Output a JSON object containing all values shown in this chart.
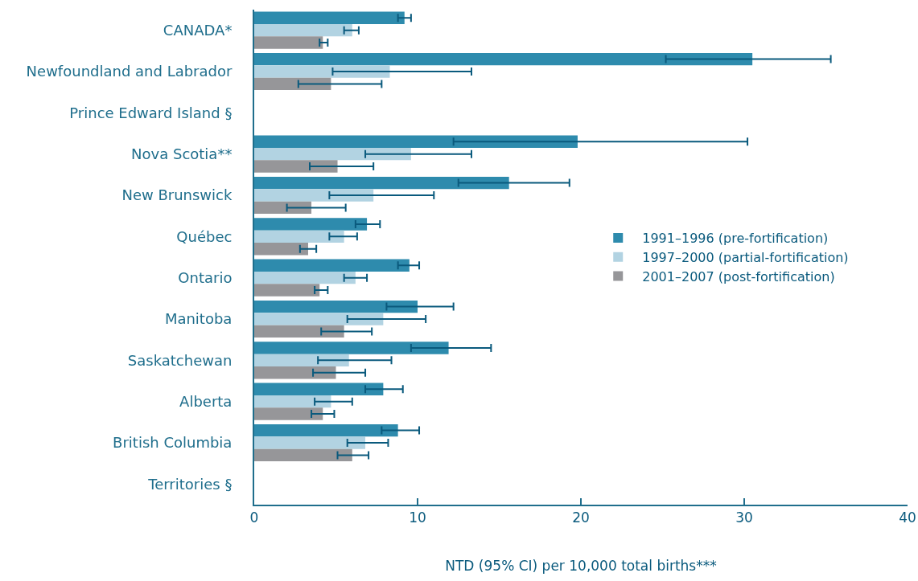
{
  "chart_data": {
    "type": "bar",
    "orientation": "horizontal",
    "xlabel": "NTD (95% CI) per 10,000 total births***",
    "categories": [
      "CANADA*",
      "Newfoundland and Labrador",
      "Prince Edward Island §",
      "Nova Scotia**",
      "New Brunswick",
      "Québec",
      "Ontario",
      "Manitoba",
      "Saskatchewan",
      "Alberta",
      "British Columbia",
      "Territories §"
    ],
    "series": [
      {
        "name": "1991–1996 (pre-fortification)",
        "color": "#2e8bad",
        "values": [
          9.2,
          30.5,
          null,
          19.8,
          15.6,
          6.9,
          9.5,
          10.0,
          11.9,
          7.9,
          8.8,
          null
        ],
        "errors": [
          [
            8.8,
            9.6
          ],
          [
            25.2,
            35.3
          ],
          null,
          [
            12.2,
            30.2
          ],
          [
            12.5,
            19.3
          ],
          [
            6.2,
            7.7
          ],
          [
            8.8,
            10.1
          ],
          [
            8.1,
            12.2
          ],
          [
            9.6,
            14.5
          ],
          [
            6.8,
            9.1
          ],
          [
            7.8,
            10.1
          ],
          null
        ]
      },
      {
        "name": "1997–2000 (partial-fortification)",
        "color": "#b2d3e2",
        "values": [
          6.0,
          8.3,
          null,
          9.6,
          7.3,
          5.5,
          6.2,
          7.9,
          5.8,
          4.7,
          6.8,
          null
        ],
        "errors": [
          [
            5.5,
            6.4
          ],
          [
            4.8,
            13.3
          ],
          null,
          [
            6.8,
            13.3
          ],
          [
            4.6,
            11.0
          ],
          [
            4.6,
            6.3
          ],
          [
            5.5,
            6.9
          ],
          [
            5.7,
            10.5
          ],
          [
            3.9,
            8.4
          ],
          [
            3.7,
            6.0
          ],
          [
            5.7,
            8.2
          ],
          null
        ]
      },
      {
        "name": "2001–2007 (post-fortification)",
        "color": "#969699",
        "values": [
          4.2,
          4.7,
          null,
          5.1,
          3.5,
          3.3,
          4.0,
          5.5,
          5.0,
          4.2,
          6.0,
          null
        ],
        "errors": [
          [
            4.0,
            4.5
          ],
          [
            2.7,
            7.8
          ],
          null,
          [
            3.4,
            7.3
          ],
          [
            2.0,
            5.6
          ],
          [
            2.8,
            3.8
          ],
          [
            3.7,
            4.5
          ],
          [
            4.1,
            7.2
          ],
          [
            3.6,
            6.8
          ],
          [
            3.5,
            4.9
          ],
          [
            5.1,
            7.0
          ],
          null
        ]
      }
    ],
    "xlim": [
      0,
      40
    ],
    "xticks": [
      0,
      10,
      20,
      30,
      40
    ],
    "grid": false,
    "legend": "right"
  }
}
